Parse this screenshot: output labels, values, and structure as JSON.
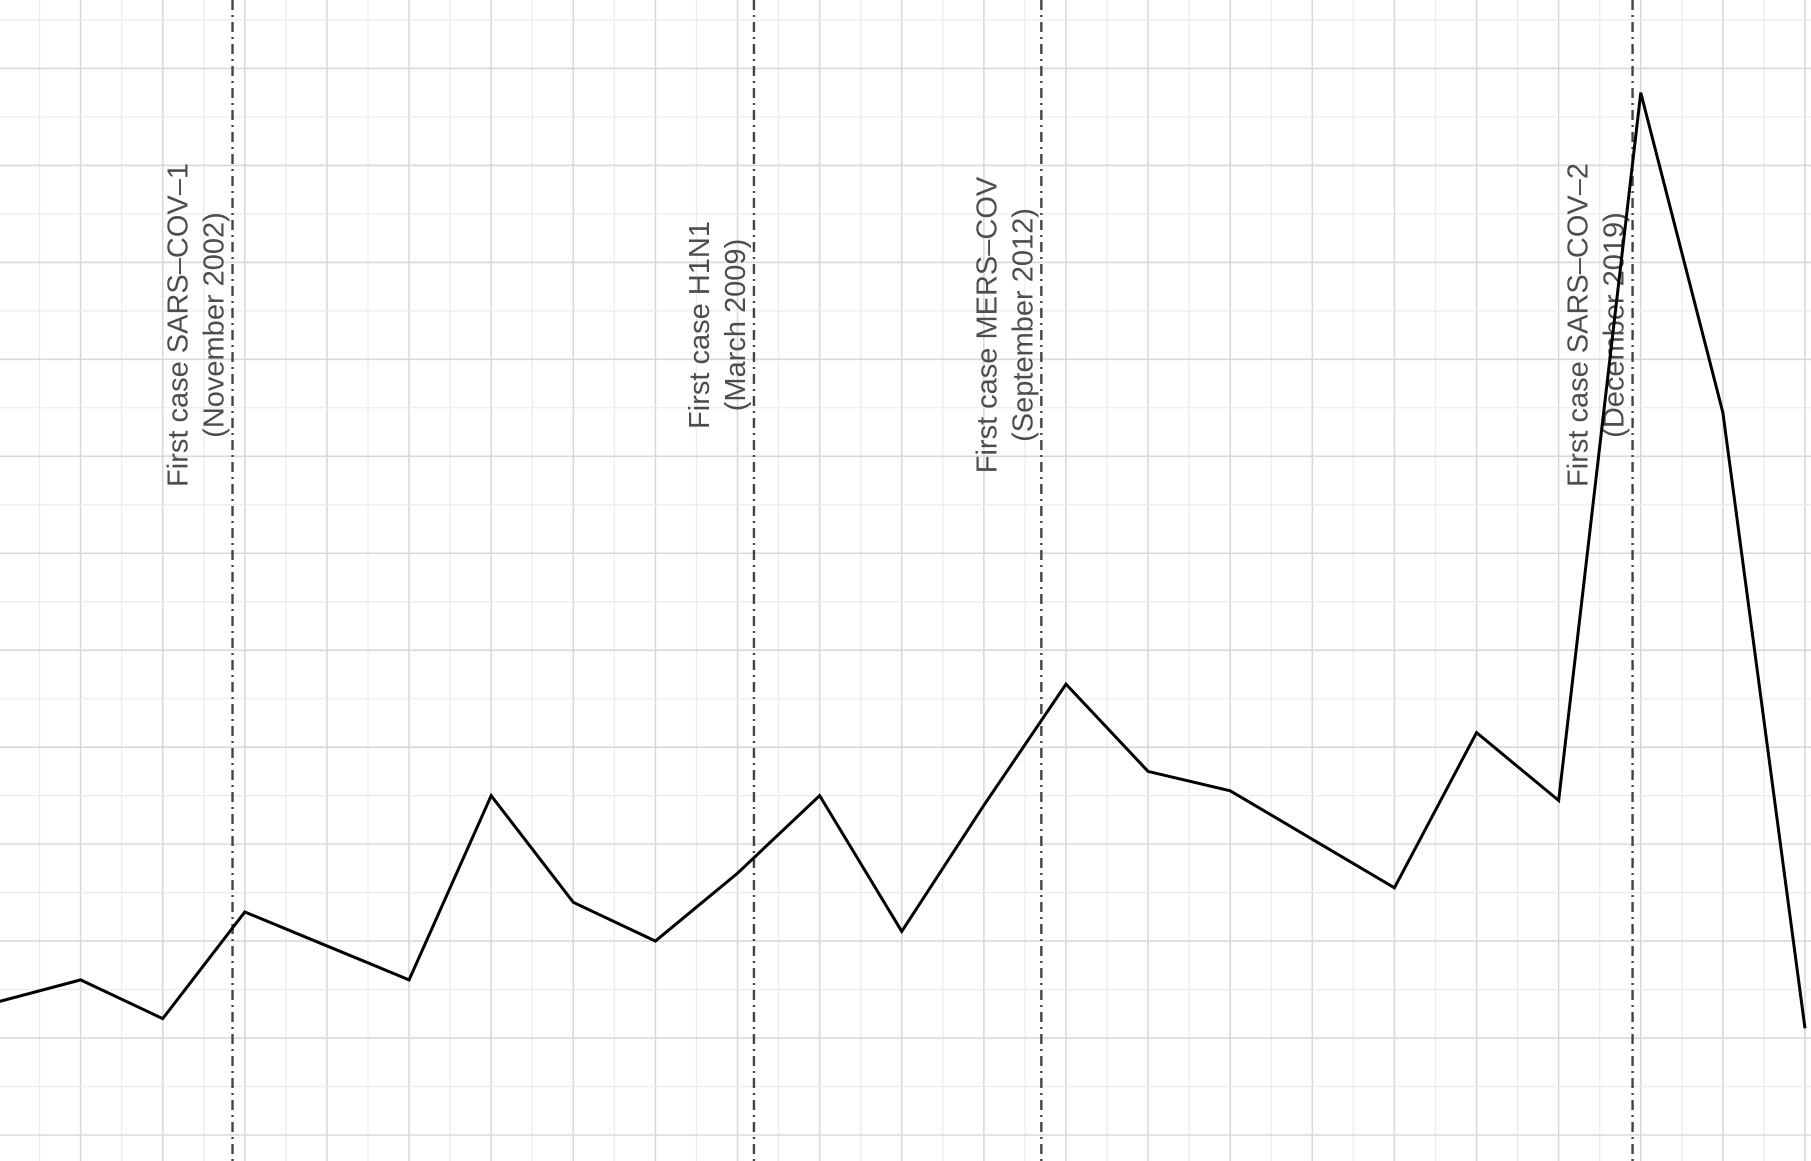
{
  "chart_data": {
    "type": "line",
    "title": "",
    "xlabel": "",
    "ylabel": "",
    "x": [
      2000,
      2001,
      2002,
      2003,
      2004,
      2005,
      2006,
      2007,
      2008,
      2009,
      2010,
      2011,
      2012,
      2013,
      2014,
      2015,
      2016,
      2017,
      2018,
      2019,
      2020,
      2021,
      2022
    ],
    "series": [
      {
        "values": [
          2.75,
          3.2,
          2.4,
          4.6,
          3.9,
          3.2,
          7.0,
          4.8,
          4.0,
          5.4,
          7.0,
          4.2,
          6.8,
          9.3,
          7.5,
          7.1,
          6.1,
          5.1,
          8.3,
          6.9,
          21.5,
          14.9,
          2.2
        ]
      }
    ],
    "xlim": [
      2000,
      2022
    ],
    "ylim": [
      0,
      23
    ],
    "grid": true,
    "annotations": [
      {
        "x": 2002.85,
        "line1": "First case SARS–COV–1",
        "line2": "(November 2002)"
      },
      {
        "x": 2009.2,
        "line1": "First case H1N1",
        "line2": "(March 2009)"
      },
      {
        "x": 2012.7,
        "line1": "First case MERS–COV",
        "line2": "(September 2012)"
      },
      {
        "x": 2019.9,
        "line1": "First case SARS–COV–2",
        "line2": "(December 2019)"
      }
    ]
  }
}
